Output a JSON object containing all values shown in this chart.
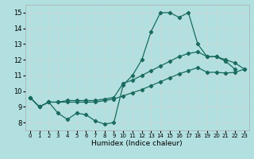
{
  "xlabel": "Humidex (Indice chaleur)",
  "bg_color": "#b2e0e0",
  "grid_color": "#d4eded",
  "line_color": "#1a6b5e",
  "xlim": [
    -0.5,
    23.5
  ],
  "ylim": [
    7.5,
    15.5
  ],
  "xticks": [
    0,
    1,
    2,
    3,
    4,
    5,
    6,
    7,
    8,
    9,
    10,
    11,
    12,
    13,
    14,
    15,
    16,
    17,
    18,
    19,
    20,
    21,
    22,
    23
  ],
  "yticks": [
    8,
    9,
    10,
    11,
    12,
    13,
    14,
    15
  ],
  "line1_x": [
    0,
    1,
    2,
    3,
    4,
    5,
    6,
    7,
    8,
    9,
    10,
    11,
    12,
    13,
    14,
    15,
    16,
    17,
    18,
    19,
    20,
    21,
    22
  ],
  "line1_y": [
    9.6,
    9.0,
    9.3,
    8.6,
    8.2,
    8.6,
    8.5,
    8.1,
    7.9,
    8.0,
    10.4,
    11.0,
    12.0,
    13.8,
    15.0,
    15.0,
    14.7,
    15.0,
    13.0,
    12.2,
    12.2,
    11.9,
    11.4
  ],
  "line2_x": [
    0,
    1,
    2,
    3,
    4,
    5,
    6,
    7,
    8,
    9,
    10,
    11,
    12,
    13,
    14,
    15,
    16,
    17,
    18,
    19,
    20,
    21,
    22,
    23
  ],
  "line2_y": [
    9.6,
    9.0,
    9.3,
    9.3,
    9.4,
    9.4,
    9.4,
    9.4,
    9.5,
    9.6,
    10.5,
    10.7,
    11.0,
    11.3,
    11.6,
    11.9,
    12.2,
    12.4,
    12.5,
    12.2,
    12.2,
    12.0,
    11.8,
    11.4
  ],
  "line3_x": [
    0,
    1,
    2,
    3,
    4,
    5,
    6,
    7,
    8,
    9,
    10,
    11,
    12,
    13,
    14,
    15,
    16,
    17,
    18,
    19,
    20,
    21,
    22,
    23
  ],
  "line3_y": [
    9.6,
    9.0,
    9.3,
    9.3,
    9.3,
    9.3,
    9.3,
    9.3,
    9.4,
    9.5,
    9.7,
    9.9,
    10.1,
    10.35,
    10.6,
    10.85,
    11.1,
    11.3,
    11.5,
    11.2,
    11.2,
    11.15,
    11.2,
    11.4
  ]
}
